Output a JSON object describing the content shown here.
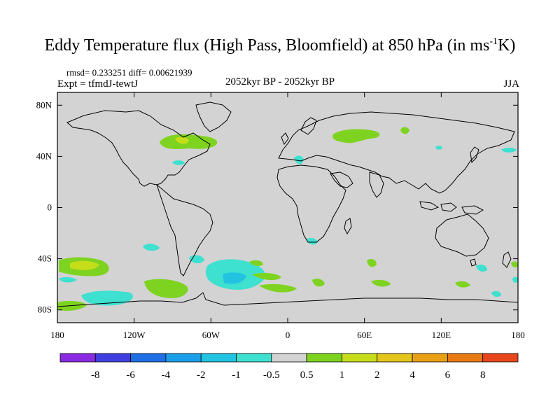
{
  "title": {
    "main": "Eddy Temperature flux (High Pass, Bloomfield) at 850 hPa (in ms",
    "sup": "-1",
    "end": "K)"
  },
  "stats": "rmsd= 0.233251  diff= 0.00621939",
  "experiment": "Expt = tfmdJ-tewtJ",
  "period": "2052kyr BP - 2052kyr BP",
  "season": "JJA",
  "map": {
    "background_color": "#d3d3d3",
    "lat_ticks": [
      "80N",
      "40N",
      "0",
      "40S",
      "80S"
    ],
    "lon_ticks": [
      "180",
      "120W",
      "60W",
      "0",
      "60E",
      "120E",
      "180"
    ],
    "anomaly_regions": [
      {
        "name": "north-america-positive",
        "level": "1 to 2"
      },
      {
        "name": "siberia-positive",
        "level": "0.5 to 1"
      },
      {
        "name": "mediterranean-negative",
        "level": "-1 to -0.5"
      },
      {
        "name": "south-pacific-positive",
        "level": "1 to 2"
      },
      {
        "name": "south-atlantic-negative",
        "level": "-1 to -0.5"
      },
      {
        "name": "southern-ocean-positive",
        "level": "0.5 to 1"
      }
    ]
  },
  "colorbar": {
    "colors": [
      "#8a2be2",
      "#3f3fe0",
      "#1e6fe6",
      "#1aa0e8",
      "#22c3e0",
      "#3ee0d0",
      "#d3d3d3",
      "#7ed321",
      "#c6dd1a",
      "#e3c51c",
      "#e8a014",
      "#e87a14",
      "#e8461c"
    ],
    "labels": [
      "-8",
      "-6",
      "-4",
      "-2",
      "-1",
      "-0.5",
      "0.5",
      "1",
      "2",
      "4",
      "6",
      "8"
    ]
  }
}
